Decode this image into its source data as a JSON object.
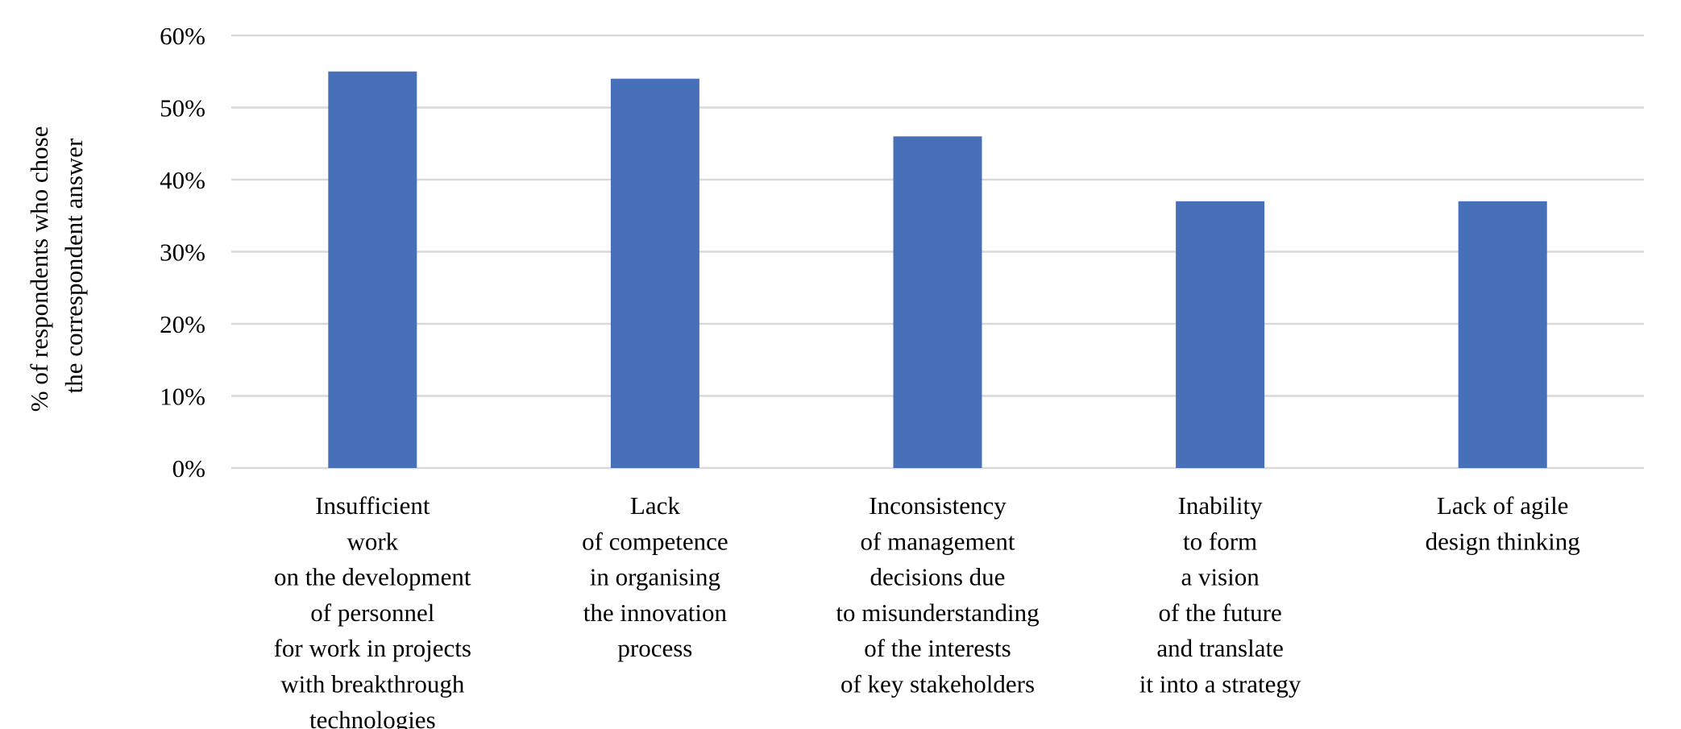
{
  "chart_data": {
    "type": "bar",
    "ylabel": [
      "% of respondents who chose",
      "the correspondent answer"
    ],
    "ylim": [
      0,
      60
    ],
    "yticks": [
      "0%",
      "10%",
      "20%",
      "30%",
      "40%",
      "50%",
      "60%"
    ],
    "grid": true,
    "categories": [
      [
        "Insufficient",
        "work",
        "on the development",
        "of personnel",
        "for work in projects",
        "with breakthrough",
        "technologies"
      ],
      [
        "Lack",
        "of competence",
        "in organising",
        "the innovation",
        "process"
      ],
      [
        "Inconsistency",
        "of management",
        "decisions due",
        "to misunderstanding",
        "of the interests",
        "of key stakeholders"
      ],
      [
        "Inability",
        "to form",
        "a vision",
        "of the future",
        "and translate",
        "it into a strategy"
      ],
      [
        "Lack of agile",
        "design thinking"
      ]
    ],
    "values": [
      55,
      54,
      46,
      37,
      37
    ],
    "colors": {
      "bar": "#4870b8",
      "grid": "#d9d9d9"
    }
  }
}
